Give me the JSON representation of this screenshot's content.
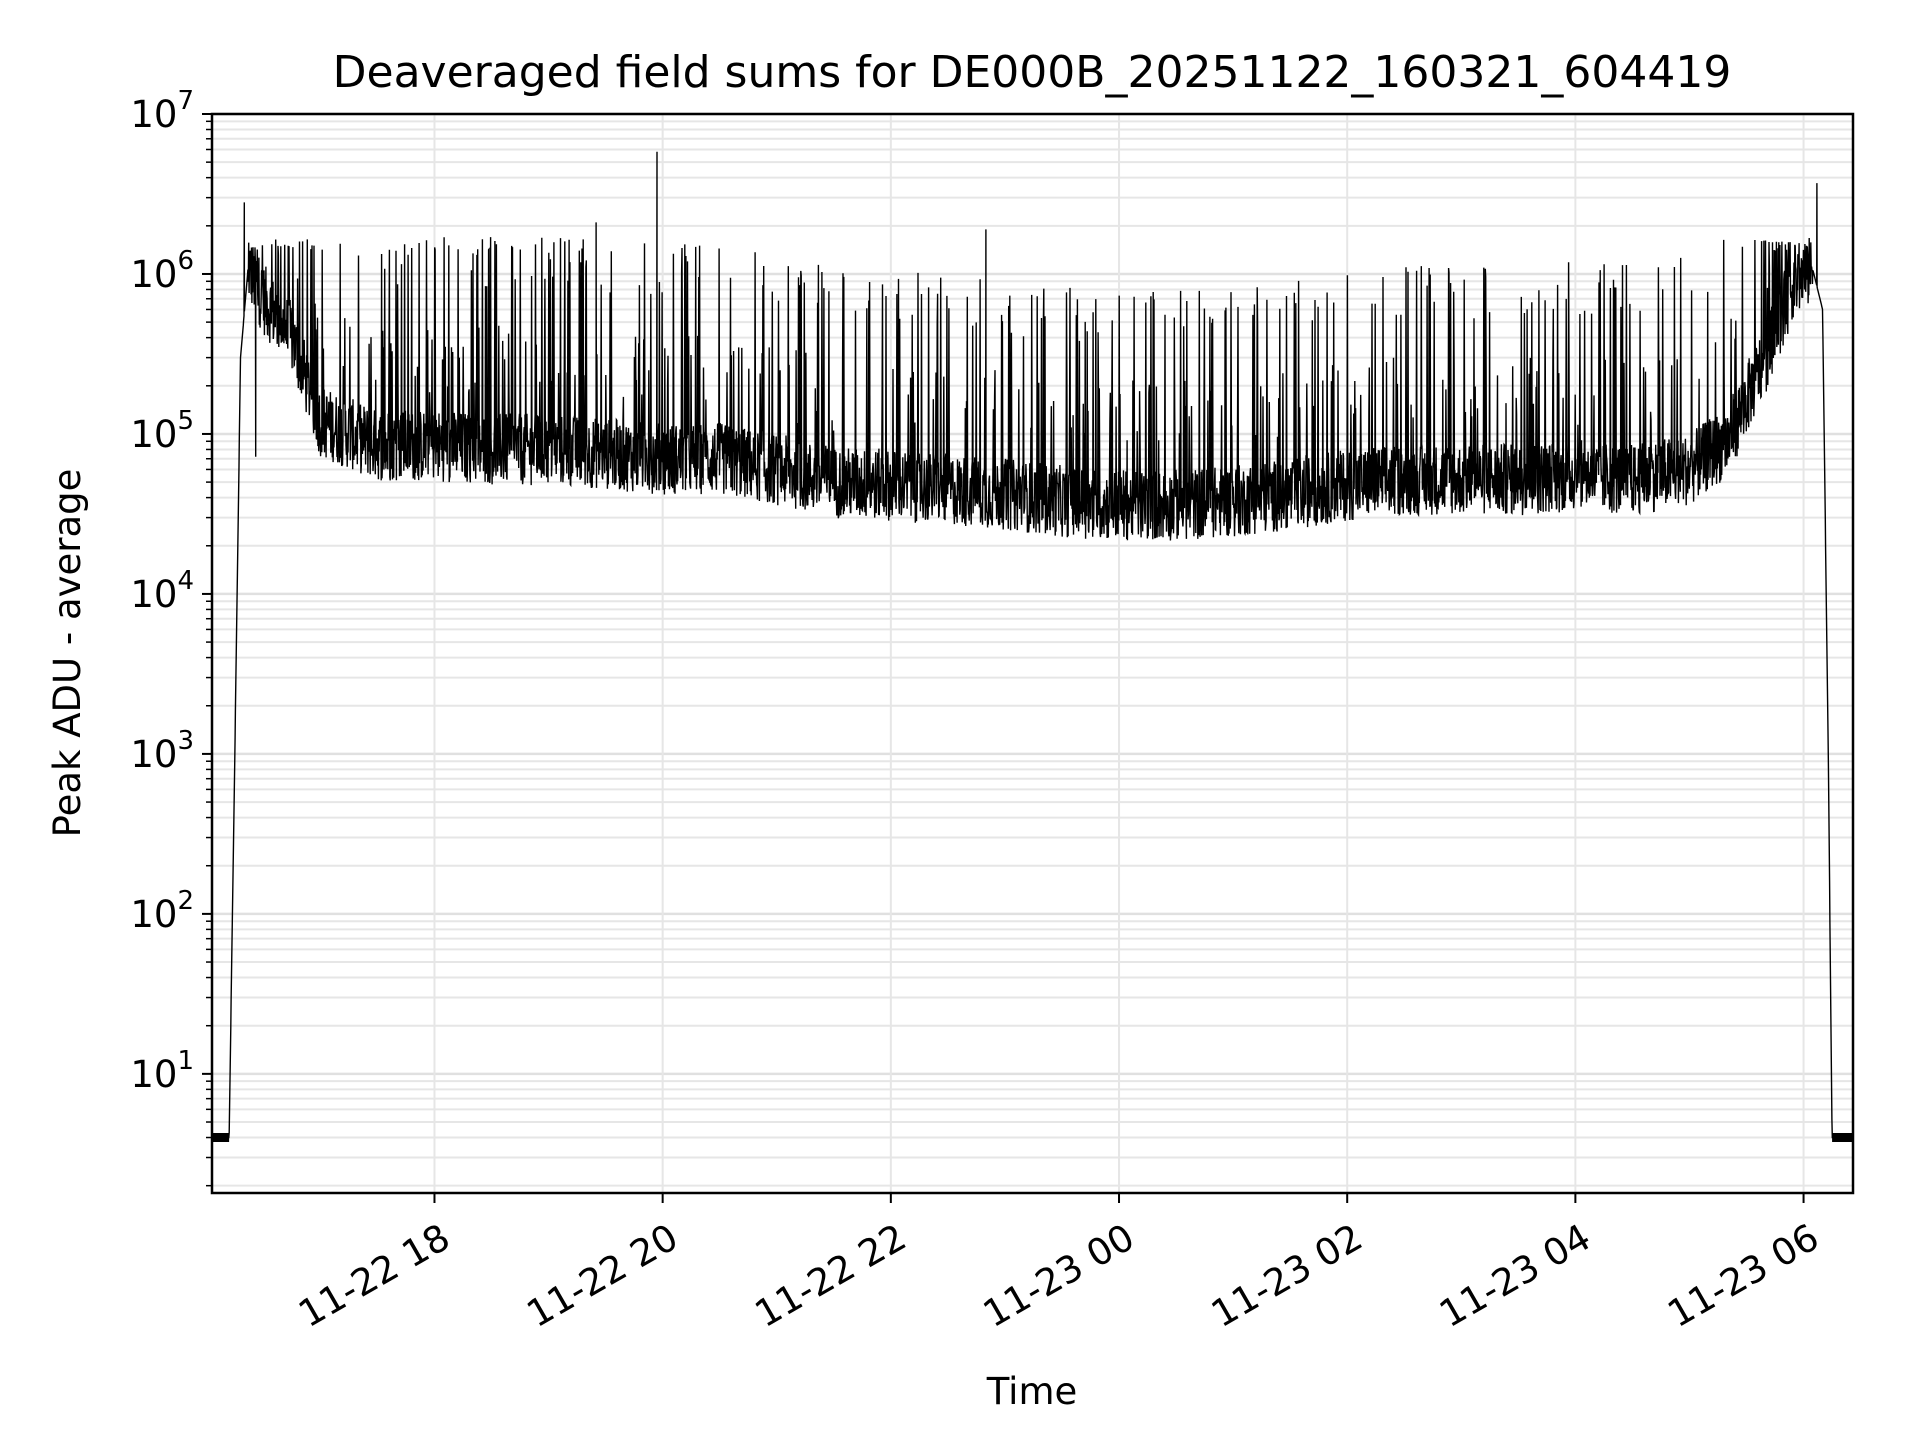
{
  "chart_data": {
    "type": "line",
    "title": "Deaveraged field sums for DE000B_20251122_160321_604419",
    "xlabel": "Time",
    "ylabel": "Peak ADU - average",
    "xscale": "time",
    "yscale": "log",
    "xlim": [
      "2025-11-22 16:03",
      "2025-11-23 06:26"
    ],
    "ylim": [
      1.8,
      10000000
    ],
    "xticks": [
      "11-22 18",
      "11-22 20",
      "11-22 22",
      "11-23 00",
      "11-23 02",
      "11-23 04",
      "11-23 06"
    ],
    "yticks": [
      {
        "base": "10",
        "exp": "1"
      },
      {
        "base": "10",
        "exp": "2"
      },
      {
        "base": "10",
        "exp": "3"
      },
      {
        "base": "10",
        "exp": "4"
      },
      {
        "base": "10",
        "exp": "5"
      },
      {
        "base": "10",
        "exp": "6"
      },
      {
        "base": "10",
        "exp": "7"
      }
    ],
    "grid": true,
    "legend": "none",
    "series": [
      {
        "color": "#000000",
        "x": [
          "2025-11-22 16:03",
          "2025-11-22 16:12",
          "2025-11-22 16:15",
          "2025-11-22 16:18",
          "2025-11-22 16:22",
          "2025-11-22 16:30",
          "2025-11-22 16:45",
          "2025-11-22 17:00",
          "2025-11-22 17:30",
          "2025-11-22 18:00",
          "2025-11-22 18:30",
          "2025-11-22 19:00",
          "2025-11-22 19:30",
          "2025-11-22 20:00",
          "2025-11-22 20:30",
          "2025-11-22 21:00",
          "2025-11-22 21:30",
          "2025-11-22 22:00",
          "2025-11-22 22:30",
          "2025-11-22 23:00",
          "2025-11-22 23:30",
          "2025-11-23 00:00",
          "2025-11-23 00:30",
          "2025-11-23 01:00",
          "2025-11-23 01:30",
          "2025-11-23 02:00",
          "2025-11-23 02:30",
          "2025-11-23 03:00",
          "2025-11-23 03:30",
          "2025-11-23 04:00",
          "2025-11-23 04:30",
          "2025-11-23 05:00",
          "2025-11-23 05:20",
          "2025-11-23 05:40",
          "2025-11-23 05:55",
          "2025-11-23 06:05",
          "2025-11-23 06:10",
          "2025-11-23 06:13",
          "2025-11-23 06:15",
          "2025-11-23 06:17",
          "2025-11-23 06:26"
        ],
        "y": [
          4,
          4,
          1000,
          300000,
          1100000,
          700000,
          400000,
          120000,
          85000,
          85000,
          80000,
          80000,
          75000,
          70000,
          70000,
          60000,
          50000,
          48000,
          45000,
          42000,
          38000,
          36000,
          36000,
          38000,
          42000,
          48000,
          52000,
          52000,
          52000,
          55000,
          52000,
          60000,
          90000,
          300000,
          900000,
          1050000,
          600000,
          1000,
          4,
          4,
          4
        ]
      }
    ],
    "spikes": [
      {
        "x": "2025-11-22 16:20",
        "y": 2800000
      },
      {
        "x": "2025-11-22 16:26",
        "y": 72000
      },
      {
        "x": "2025-11-22 19:25",
        "y": 2100000
      },
      {
        "x": "2025-11-22 19:57",
        "y": 5800000
      },
      {
        "x": "2025-11-22 22:50",
        "y": 1900000
      },
      {
        "x": "2025-11-23 06:07",
        "y": 3700000
      }
    ]
  }
}
